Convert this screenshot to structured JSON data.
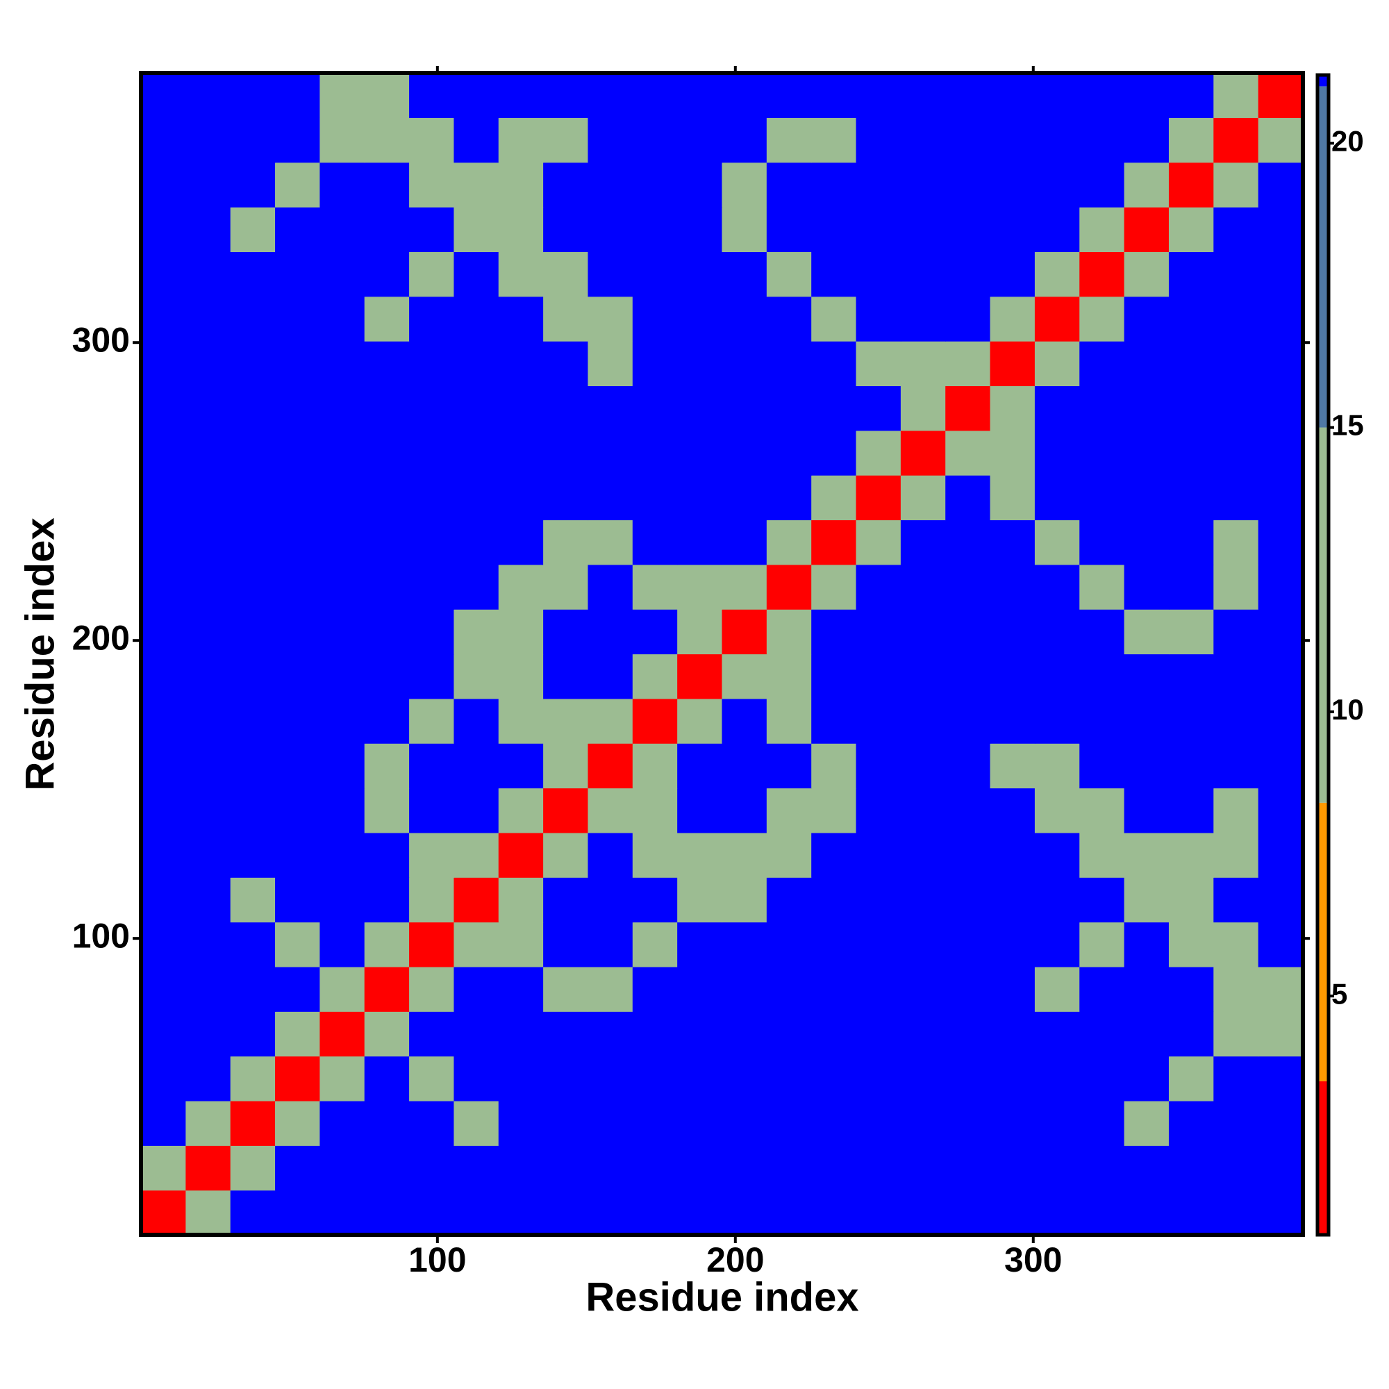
{
  "chart_data": {
    "type": "heatmap",
    "xlabel": "Residue index",
    "ylabel": "Residue index",
    "x": [
      8,
      23,
      38,
      53,
      68,
      83,
      98,
      113,
      128,
      143,
      158,
      173,
      188,
      203,
      218,
      233,
      248,
      263,
      278,
      293,
      308,
      323,
      338,
      353,
      368,
      383
    ],
    "y": [
      8,
      23,
      38,
      53,
      68,
      83,
      98,
      113,
      128,
      143,
      158,
      173,
      188,
      203,
      218,
      233,
      248,
      263,
      278,
      293,
      308,
      323,
      338,
      353,
      368,
      383
    ],
    "cell_size": 15,
    "xlim": [
      0.5,
      390.5
    ],
    "ylim": [
      0.5,
      390.5
    ],
    "xticks": [
      100,
      200,
      300
    ],
    "yticks": [
      100,
      200,
      300
    ],
    "z": [
      [
        2,
        11,
        21.2,
        21.2,
        21.2,
        21.2,
        21.2,
        21.2,
        21.2,
        21.2,
        21.2,
        21.2,
        21.2,
        21.2,
        21.2,
        21.2,
        21.2,
        21.2,
        21.2,
        21.2,
        21.2,
        21.2,
        21.2,
        21.2,
        21.2,
        21.2
      ],
      [
        11,
        2,
        11,
        21.2,
        21.2,
        21.2,
        21.2,
        21.2,
        21.2,
        21.2,
        21.2,
        21.2,
        21.2,
        21.2,
        21.2,
        21.2,
        21.2,
        21.2,
        21.2,
        21.2,
        21.2,
        21.2,
        21.2,
        21.2,
        21.2,
        21.2
      ],
      [
        21.2,
        11,
        2,
        11,
        21.2,
        21.2,
        21.2,
        10,
        21.2,
        21.2,
        21.2,
        21.2,
        21.2,
        21.2,
        21.2,
        21.2,
        21.2,
        21.2,
        21.2,
        21.2,
        21.2,
        21.2,
        10,
        21.2,
        21.2,
        21.2
      ],
      [
        21.2,
        21.2,
        11,
        2,
        11,
        21.2,
        10,
        21.2,
        21.2,
        21.2,
        21.2,
        21.2,
        21.2,
        21.2,
        21.2,
        21.2,
        21.2,
        21.2,
        21.2,
        21.2,
        21.2,
        21.2,
        21.2,
        10,
        21.2,
        21.2
      ],
      [
        21.2,
        21.2,
        21.2,
        11,
        2,
        10,
        21.2,
        21.2,
        21.2,
        21.2,
        21.2,
        21.2,
        21.2,
        21.2,
        21.2,
        21.2,
        21.2,
        21.2,
        21.2,
        21.2,
        21.2,
        21.2,
        21.2,
        21.2,
        10,
        10
      ],
      [
        21.2,
        21.2,
        21.2,
        21.2,
        10,
        2,
        11,
        21.2,
        21.2,
        10,
        10,
        21.2,
        21.2,
        21.2,
        21.2,
        21.2,
        21.2,
        21.2,
        21.2,
        21.2,
        10,
        21.2,
        21.2,
        21.2,
        10,
        10
      ],
      [
        21.2,
        21.2,
        21.2,
        10,
        21.2,
        11,
        2,
        11,
        10,
        21.2,
        21.2,
        10,
        21.2,
        21.2,
        21.2,
        21.2,
        21.2,
        21.2,
        21.2,
        21.2,
        21.2,
        10,
        21.2,
        10,
        10,
        21.2
      ],
      [
        21.2,
        21.2,
        10,
        21.2,
        21.2,
        21.2,
        11,
        2,
        11,
        21.2,
        21.2,
        21.2,
        10,
        10,
        21.2,
        21.2,
        21.2,
        21.2,
        21.2,
        21.2,
        21.2,
        21.2,
        10,
        10,
        21.2,
        21.2
      ],
      [
        21.2,
        21.2,
        21.2,
        21.2,
        21.2,
        21.2,
        10,
        11,
        2,
        11,
        21.2,
        10,
        10,
        10,
        10,
        21.2,
        21.2,
        21.2,
        21.2,
        21.2,
        21.2,
        10,
        10,
        15,
        15,
        21.2
      ],
      [
        21.2,
        21.2,
        21.2,
        21.2,
        21.2,
        10,
        21.2,
        21.2,
        11,
        2,
        11,
        10,
        21.2,
        21.2,
        10,
        10,
        21.2,
        21.2,
        21.2,
        21.2,
        10,
        10,
        21.2,
        21.2,
        15,
        21.2
      ],
      [
        21.2,
        21.2,
        21.2,
        21.2,
        21.2,
        10,
        21.2,
        21.2,
        21.2,
        11,
        2,
        11,
        21.2,
        21.2,
        21.2,
        10,
        21.2,
        21.2,
        21.2,
        10,
        10,
        21.2,
        21.2,
        21.2,
        21.2,
        21.2
      ],
      [
        21.2,
        21.2,
        21.2,
        21.2,
        21.2,
        21.2,
        10,
        21.2,
        10,
        10,
        11,
        2,
        11,
        21.2,
        10,
        21.2,
        21.2,
        21.2,
        21.2,
        21.2,
        21.2,
        21.2,
        21.2,
        21.2,
        21.2,
        21.2
      ],
      [
        21.2,
        21.2,
        21.2,
        21.2,
        21.2,
        21.2,
        21.2,
        10,
        10,
        21.2,
        21.2,
        11,
        2,
        11,
        15,
        21.2,
        21.2,
        21.2,
        21.2,
        21.2,
        21.2,
        21.2,
        21.2,
        21.2,
        21.2,
        21.2
      ],
      [
        21.2,
        21.2,
        21.2,
        21.2,
        21.2,
        21.2,
        21.2,
        10,
        10,
        21.2,
        21.2,
        21.2,
        11,
        2,
        11,
        21.2,
        21.2,
        21.2,
        21.2,
        21.2,
        21.2,
        21.2,
        10,
        15,
        21.2,
        21.2
      ],
      [
        21.2,
        21.2,
        21.2,
        21.2,
        21.2,
        21.2,
        21.2,
        21.2,
        10,
        10,
        21.2,
        10,
        15,
        11,
        2,
        11,
        21.2,
        21.2,
        21.2,
        21.2,
        21.2,
        10,
        21.2,
        21.2,
        15,
        21.2
      ],
      [
        21.2,
        21.2,
        21.2,
        21.2,
        21.2,
        21.2,
        21.2,
        21.2,
        21.2,
        10,
        10,
        21.2,
        21.2,
        21.2,
        11,
        2,
        11,
        21.2,
        21.2,
        21.2,
        10,
        21.2,
        21.2,
        21.2,
        15,
        21.2
      ],
      [
        21.2,
        21.2,
        21.2,
        21.2,
        21.2,
        21.2,
        21.2,
        21.2,
        21.2,
        21.2,
        21.2,
        21.2,
        21.2,
        21.2,
        21.2,
        11,
        2,
        11,
        21.2,
        10,
        21.2,
        21.2,
        21.2,
        21.2,
        21.2,
        21.2
      ],
      [
        21.2,
        21.2,
        21.2,
        21.2,
        21.2,
        21.2,
        21.2,
        21.2,
        21.2,
        21.2,
        21.2,
        21.2,
        21.2,
        21.2,
        21.2,
        21.2,
        11,
        2,
        11,
        15,
        21.2,
        21.2,
        21.2,
        21.2,
        21.2,
        21.2
      ],
      [
        21.2,
        21.2,
        21.2,
        21.2,
        21.2,
        21.2,
        21.2,
        21.2,
        21.2,
        21.2,
        21.2,
        21.2,
        21.2,
        21.2,
        21.2,
        21.2,
        21.2,
        11,
        2,
        11,
        21.2,
        21.2,
        21.2,
        21.2,
        21.2,
        21.2
      ],
      [
        21.2,
        21.2,
        21.2,
        21.2,
        21.2,
        21.2,
        21.2,
        21.2,
        21.2,
        21.2,
        10,
        21.2,
        21.2,
        21.2,
        21.2,
        21.2,
        10,
        15,
        11,
        2,
        11,
        21.2,
        21.2,
        21.2,
        21.2,
        21.2
      ],
      [
        21.2,
        21.2,
        21.2,
        21.2,
        21.2,
        10,
        21.2,
        21.2,
        21.2,
        10,
        10,
        21.2,
        21.2,
        21.2,
        21.2,
        10,
        21.2,
        21.2,
        21.2,
        11,
        2,
        11,
        21.2,
        21.2,
        21.2,
        21.2
      ],
      [
        21.2,
        21.2,
        21.2,
        21.2,
        21.2,
        21.2,
        10,
        21.2,
        10,
        10,
        21.2,
        21.2,
        21.2,
        21.2,
        10,
        21.2,
        21.2,
        21.2,
        21.2,
        21.2,
        11,
        2,
        11,
        21.2,
        21.2,
        21.2
      ],
      [
        21.2,
        21.2,
        10,
        21.2,
        21.2,
        21.2,
        21.2,
        10,
        10,
        21.2,
        21.2,
        21.2,
        21.2,
        10,
        21.2,
        21.2,
        21.2,
        21.2,
        21.2,
        21.2,
        21.2,
        11,
        2,
        11,
        21.2,
        21.2
      ],
      [
        21.2,
        21.2,
        21.2,
        10,
        21.2,
        21.2,
        10,
        10,
        15,
        21.2,
        21.2,
        21.2,
        21.2,
        15,
        21.2,
        21.2,
        21.2,
        21.2,
        21.2,
        21.2,
        21.2,
        21.2,
        11,
        2,
        11,
        21.2
      ],
      [
        21.2,
        21.2,
        21.2,
        21.2,
        10,
        10,
        10,
        21.2,
        15,
        15,
        21.2,
        21.2,
        21.2,
        21.2,
        15,
        15,
        21.2,
        21.2,
        21.2,
        21.2,
        21.2,
        21.2,
        21.2,
        11,
        2,
        11
      ],
      [
        21.2,
        21.2,
        21.2,
        21.2,
        10,
        10,
        21.2,
        21.2,
        21.2,
        21.2,
        21.2,
        21.2,
        21.2,
        21.2,
        21.2,
        21.2,
        21.2,
        21.2,
        21.2,
        21.2,
        21.2,
        21.2,
        21.2,
        21.2,
        11,
        2
      ]
    ],
    "color_levels": [
      {
        "max": 3.5,
        "color": "#ff0000"
      },
      {
        "max": 8.4,
        "color": "#ff9a00"
      },
      {
        "max": 15,
        "color": "#9cbc92"
      },
      {
        "max": 21,
        "color": "#5079a6"
      },
      {
        "max": 21.2,
        "color": "#0000ff"
      }
    ],
    "colorbar": {
      "lim": [
        0.8,
        21.2
      ],
      "ticks": [
        5,
        10,
        15,
        20
      ]
    }
  }
}
